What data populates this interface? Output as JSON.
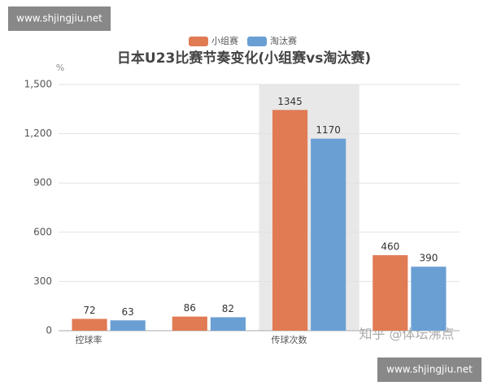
{
  "chart_data": {
    "type": "bar",
    "title": "日本U23比赛节奏变化(小组赛vs淘汰赛)",
    "y_unit": "%",
    "categories": [
      "控球率",
      null,
      "传球次数",
      null
    ],
    "series": [
      {
        "name": "小组赛",
        "color": "#e07b54",
        "values": [
          72,
          86,
          1345,
          460
        ]
      },
      {
        "name": "淘汰赛",
        "color": "#6a9fd4",
        "values": [
          63,
          82,
          1170,
          390
        ]
      }
    ],
    "ylim": [
      0,
      1500
    ],
    "yticks": [
      0,
      300,
      600,
      900,
      {
        "value": 1200,
        "label": "1,200"
      },
      {
        "value": 1500,
        "label": "1,500"
      }
    ],
    "grid": true,
    "legend": "top",
    "highlight_category": 2
  },
  "watermarks": [
    "www.shjingjiu.net",
    "知乎 @体坛沸点",
    "www.shjingjiu.net"
  ]
}
